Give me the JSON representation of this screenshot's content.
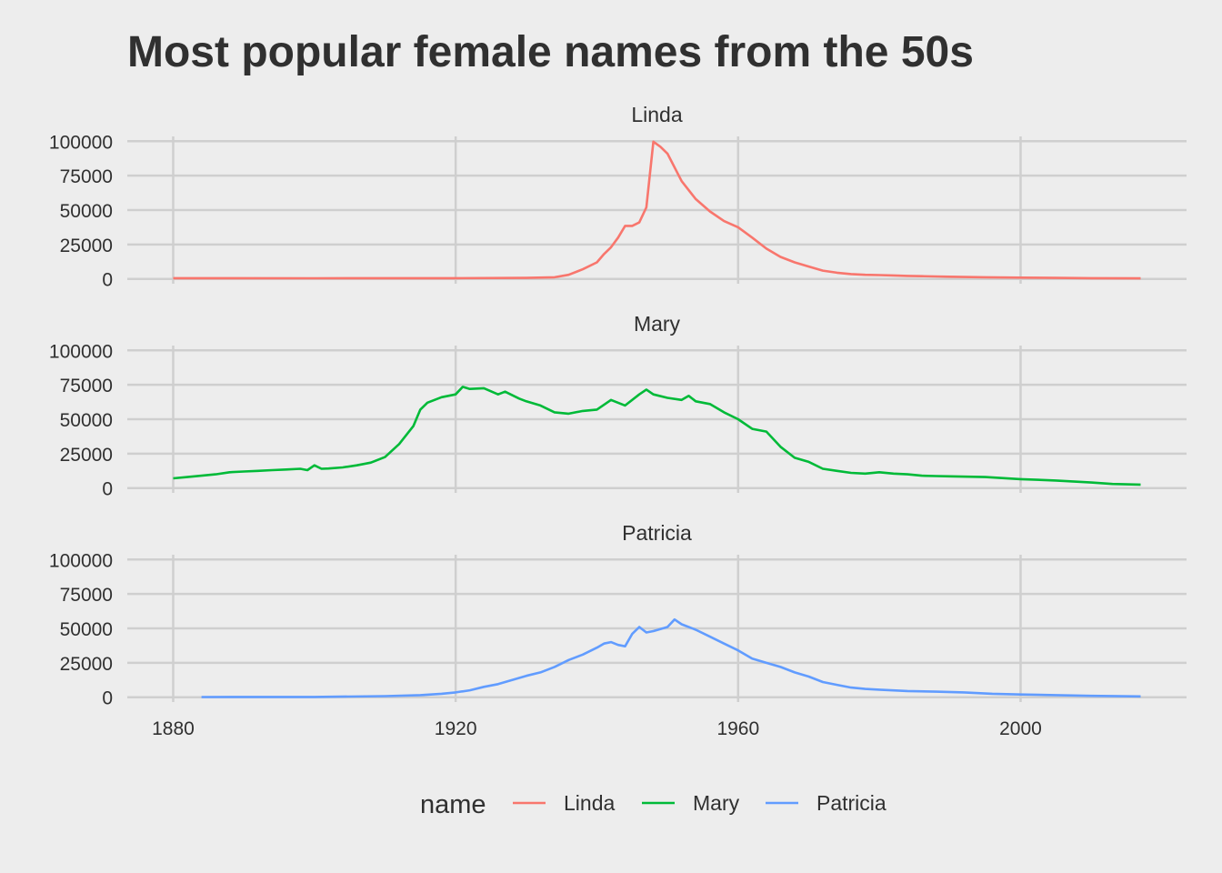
{
  "chart_data": {
    "type": "line",
    "title": "Most popular female names from the 50s",
    "xlabel": "",
    "ylabel": "",
    "facets": [
      "Linda",
      "Mary",
      "Patricia"
    ],
    "xlim": [
      1873.5,
      2023.5
    ],
    "ylim": [
      -3500,
      103500
    ],
    "x_ticks": [
      1880,
      1920,
      1960,
      2000
    ],
    "y_ticks": [
      0,
      25000,
      50000,
      75000,
      100000
    ],
    "grid": true,
    "legend": {
      "title": "name",
      "position": "bottom"
    },
    "series": [
      {
        "name": "Linda",
        "color": "#F8766D",
        "x": [
          1880,
          1900,
          1920,
          1930,
          1934,
          1936,
          1938,
          1940,
          1941,
          1942,
          1943,
          1944,
          1945,
          1946,
          1947,
          1948,
          1949,
          1950,
          1952,
          1954,
          1956,
          1958,
          1960,
          1962,
          1964,
          1966,
          1968,
          1970,
          1972,
          1974,
          1976,
          1978,
          1980,
          1982,
          1984,
          1986,
          1988,
          1990,
          1995,
          2000,
          2005,
          2010,
          2017
        ],
        "y": [
          500,
          450,
          500,
          700,
          1200,
          3000,
          7000,
          12000,
          18000,
          23000,
          30000,
          38500,
          38500,
          41000,
          52000,
          99700,
          96000,
          91000,
          71000,
          58000,
          49000,
          42000,
          37500,
          30000,
          22000,
          16000,
          12000,
          9000,
          6000,
          4500,
          3500,
          3000,
          2800,
          2500,
          2200,
          2000,
          1800,
          1600,
          1200,
          900,
          700,
          500,
          400
        ]
      },
      {
        "name": "Mary",
        "color": "#00BA38",
        "x": [
          1880,
          1882,
          1884,
          1886,
          1888,
          1890,
          1892,
          1894,
          1896,
          1898,
          1899,
          1900,
          1901,
          1902,
          1904,
          1906,
          1908,
          1910,
          1912,
          1914,
          1915,
          1916,
          1918,
          1920,
          1921,
          1922,
          1924,
          1926,
          1927,
          1929,
          1930,
          1932,
          1934,
          1936,
          1938,
          1940,
          1942,
          1944,
          1946,
          1947,
          1948,
          1950,
          1952,
          1953,
          1954,
          1956,
          1958,
          1960,
          1962,
          1964,
          1966,
          1968,
          1970,
          1972,
          1974,
          1976,
          1978,
          1980,
          1982,
          1984,
          1986,
          1988,
          1990,
          1995,
          2000,
          2005,
          2010,
          2013,
          2017
        ],
        "y": [
          7100,
          8000,
          9000,
          10000,
          11500,
          12000,
          12500,
          13000,
          13500,
          14000,
          13000,
          16500,
          14000,
          14200,
          15000,
          16500,
          18500,
          22500,
          32000,
          45000,
          57000,
          62000,
          66000,
          68000,
          73500,
          72000,
          72500,
          68000,
          70000,
          65000,
          63000,
          60000,
          55000,
          54000,
          56000,
          57000,
          64000,
          60000,
          68000,
          71500,
          68000,
          65500,
          64000,
          67000,
          63000,
          61000,
          55000,
          50000,
          43000,
          41000,
          30000,
          22000,
          19000,
          14000,
          12500,
          11000,
          10500,
          11500,
          10500,
          10000,
          9000,
          8700,
          8500,
          8000,
          6500,
          5500,
          4000,
          3000,
          2500
        ]
      },
      {
        "name": "Patricia",
        "color": "#619CFF",
        "x": [
          1884,
          1900,
          1910,
          1915,
          1918,
          1920,
          1922,
          1924,
          1926,
          1928,
          1930,
          1932,
          1934,
          1936,
          1938,
          1940,
          1941,
          1942,
          1943,
          1944,
          1945,
          1946,
          1947,
          1948,
          1950,
          1951,
          1952,
          1954,
          1956,
          1958,
          1960,
          1962,
          1964,
          1966,
          1968,
          1970,
          1972,
          1974,
          1976,
          1978,
          1980,
          1984,
          1988,
          1992,
          1996,
          2000,
          2005,
          2010,
          2017
        ],
        "y": [
          100,
          200,
          800,
          1500,
          2500,
          3500,
          5000,
          7500,
          9500,
          12500,
          15500,
          18000,
          22000,
          27000,
          31000,
          36000,
          39000,
          40000,
          38000,
          37000,
          46000,
          51000,
          47000,
          48000,
          51000,
          56500,
          53000,
          49000,
          44000,
          39000,
          34000,
          28000,
          25000,
          22000,
          18000,
          15000,
          11000,
          9000,
          7000,
          6000,
          5500,
          4500,
          4000,
          3500,
          2500,
          2000,
          1500,
          1000,
          600
        ]
      }
    ]
  }
}
